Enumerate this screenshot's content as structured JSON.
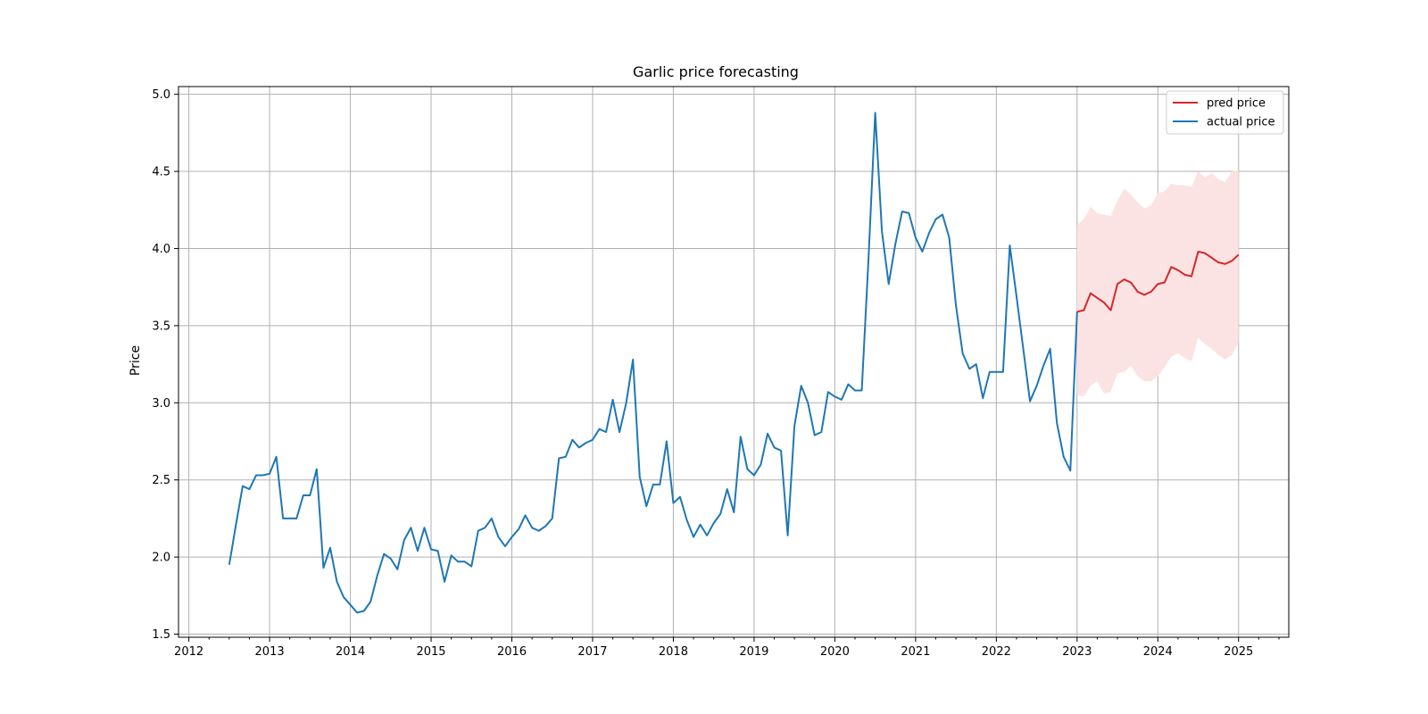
{
  "chart_data": {
    "type": "line",
    "title": "Garlic price forecasting",
    "xlabel": "",
    "ylabel": "Price",
    "xlim": [
      "2011-11-15",
      "2025-08-15"
    ],
    "ylim": [
      1.48,
      5.05
    ],
    "x_ticks": [
      "2012",
      "2013",
      "2014",
      "2015",
      "2016",
      "2017",
      "2018",
      "2019",
      "2020",
      "2021",
      "2022",
      "2023",
      "2024",
      "2025"
    ],
    "y_ticks": [
      "1.5",
      "2.0",
      "2.5",
      "3.0",
      "3.5",
      "4.0",
      "4.5",
      "5.0"
    ],
    "grid": true,
    "legend": {
      "placement": "upper-right",
      "entries": [
        "pred price",
        "actual price"
      ]
    },
    "colors": {
      "pred": "#d62728",
      "actual": "#1f77b4",
      "band": "#fbe3e3"
    },
    "series": [
      {
        "name": "actual price",
        "x": [
          "2012-07",
          "2012-08",
          "2012-09",
          "2012-10",
          "2012-11",
          "2012-12",
          "2013-01",
          "2013-02",
          "2013-03",
          "2013-04",
          "2013-05",
          "2013-06",
          "2013-07",
          "2013-08",
          "2013-09",
          "2013-10",
          "2013-11",
          "2013-12",
          "2014-01",
          "2014-02",
          "2014-03",
          "2014-04",
          "2014-05",
          "2014-06",
          "2014-07",
          "2014-08",
          "2014-09",
          "2014-10",
          "2014-11",
          "2014-12",
          "2015-01",
          "2015-02",
          "2015-03",
          "2015-04",
          "2015-05",
          "2015-06",
          "2015-07",
          "2015-08",
          "2015-09",
          "2015-10",
          "2015-11",
          "2015-12",
          "2016-01",
          "2016-02",
          "2016-03",
          "2016-04",
          "2016-05",
          "2016-06",
          "2016-07",
          "2016-08",
          "2016-09",
          "2016-10",
          "2016-11",
          "2016-12",
          "2017-01",
          "2017-02",
          "2017-03",
          "2017-04",
          "2017-05",
          "2017-06",
          "2017-07",
          "2017-08",
          "2017-09",
          "2017-10",
          "2017-11",
          "2017-12",
          "2018-01",
          "2018-02",
          "2018-03",
          "2018-04",
          "2018-05",
          "2018-06",
          "2018-07",
          "2018-08",
          "2018-09",
          "2018-10",
          "2018-11",
          "2018-12",
          "2019-01",
          "2019-02",
          "2019-03",
          "2019-04",
          "2019-05",
          "2019-06",
          "2019-07",
          "2019-08",
          "2019-09",
          "2019-10",
          "2019-11",
          "2019-12",
          "2020-01",
          "2020-02",
          "2020-03",
          "2020-04",
          "2020-05",
          "2020-06",
          "2020-07",
          "2020-08",
          "2020-09",
          "2020-10",
          "2020-11",
          "2020-12",
          "2021-01",
          "2021-02",
          "2021-03",
          "2021-04",
          "2021-05",
          "2021-06",
          "2021-07",
          "2021-08",
          "2021-09",
          "2021-10",
          "2021-11",
          "2021-12",
          "2022-01",
          "2022-02",
          "2022-03",
          "2022-04",
          "2022-05",
          "2022-06",
          "2022-07",
          "2022-08",
          "2022-09",
          "2022-10",
          "2022-11",
          "2022-12"
        ],
        "y": [
          1.95,
          2.21,
          2.46,
          2.44,
          2.53,
          2.53,
          2.54,
          2.65,
          2.25,
          2.25,
          2.25,
          2.4,
          2.4,
          2.57,
          1.93,
          2.06,
          1.84,
          1.74,
          1.69,
          1.64,
          1.65,
          1.71,
          1.88,
          2.02,
          1.99,
          1.92,
          2.11,
          2.19,
          2.04,
          2.19,
          2.05,
          2.04,
          1.84,
          2.01,
          1.97,
          1.97,
          1.94,
          2.17,
          2.19,
          2.25,
          2.13,
          2.07,
          2.13,
          2.18,
          2.27,
          2.19,
          2.17,
          2.2,
          2.25,
          2.64,
          2.65,
          2.76,
          2.71,
          2.74,
          2.76,
          2.83,
          2.81,
          3.02,
          2.81,
          3.0,
          3.28,
          2.52,
          2.33,
          2.47,
          2.47,
          2.75,
          2.35,
          2.39,
          2.24,
          2.13,
          2.21,
          2.14,
          2.22,
          2.28,
          2.44,
          2.29,
          2.78,
          2.57,
          2.53,
          2.6,
          2.8,
          2.71,
          2.69,
          2.14,
          2.85,
          3.11,
          3.0,
          2.79,
          2.81,
          3.07,
          3.04,
          3.02,
          3.12,
          3.08,
          3.08,
          3.93,
          4.88,
          4.11,
          3.77,
          4.03,
          4.24,
          4.23,
          4.07,
          3.98,
          4.1,
          4.19,
          4.22,
          4.07,
          3.63,
          3.32,
          3.22,
          3.25,
          3.03,
          3.2,
          3.2,
          3.2,
          4.02,
          3.69,
          3.35,
          3.01,
          3.11,
          3.24,
          3.35,
          2.87,
          2.65,
          2.56
        ]
      },
      {
        "name": "pred price",
        "x": [
          "2023-01",
          "2023-02",
          "2023-03",
          "2023-04",
          "2023-05",
          "2023-06",
          "2023-07",
          "2023-08",
          "2023-09",
          "2023-10",
          "2023-11",
          "2023-12",
          "2024-01",
          "2024-02",
          "2024-03",
          "2024-04",
          "2024-05",
          "2024-06",
          "2024-07",
          "2024-08",
          "2024-09",
          "2024-10",
          "2024-11",
          "2024-12",
          "2025-01"
        ],
        "y": [
          3.59,
          3.6,
          3.71,
          3.68,
          3.65,
          3.6,
          3.77,
          3.8,
          3.78,
          3.72,
          3.7,
          3.72,
          3.77,
          3.78,
          3.88,
          3.86,
          3.83,
          3.82,
          3.98,
          3.97,
          3.94,
          3.91,
          3.9,
          3.92,
          3.96
        ],
        "upper": [
          4.15,
          4.19,
          4.27,
          4.23,
          4.22,
          4.21,
          4.31,
          4.39,
          4.35,
          4.3,
          4.26,
          4.28,
          4.36,
          4.37,
          4.42,
          4.41,
          4.41,
          4.4,
          4.5,
          4.46,
          4.49,
          4.45,
          4.43,
          4.5,
          4.51
        ],
        "lower": [
          3.05,
          3.04,
          3.11,
          3.14,
          3.06,
          3.07,
          3.19,
          3.2,
          3.24,
          3.17,
          3.14,
          3.14,
          3.17,
          3.23,
          3.3,
          3.32,
          3.29,
          3.27,
          3.42,
          3.38,
          3.35,
          3.31,
          3.28,
          3.31,
          3.39
        ]
      }
    ]
  }
}
